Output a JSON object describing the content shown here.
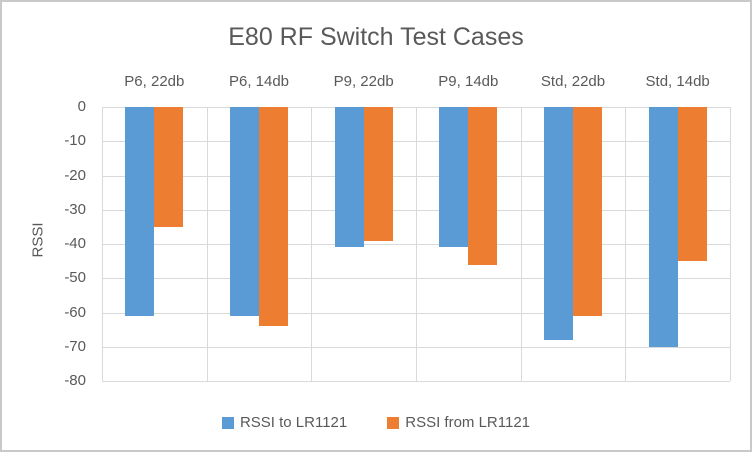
{
  "chart_data": {
    "type": "bar",
    "title": "E80 RF Switch Test Cases",
    "xlabel": "",
    "ylabel": "RSSI",
    "categories": [
      "P6, 22db",
      "P6, 14db",
      "P9, 22db",
      "P9, 14db",
      "Std, 22db",
      "Std, 14db"
    ],
    "series": [
      {
        "name": "RSSI to LR1121",
        "color": "#5B9BD5",
        "values": [
          -61,
          -61,
          -41,
          -41,
          -68,
          -70
        ]
      },
      {
        "name": "RSSI from LR1121",
        "color": "#ED7D31",
        "values": [
          -35,
          -64,
          -39,
          -46,
          -61,
          -45
        ]
      }
    ],
    "ylim": [
      -80,
      0
    ],
    "ytick_step": 10,
    "grid": "horizontal and vertical category boundaries",
    "legend_position": "bottom",
    "bar_orientation": "vertical, hanging from zero line (negative values)"
  },
  "colors": {
    "text": "#595959",
    "grid": "#D9D9D9",
    "border": "#C9C9C9",
    "background": "#FFFFFF"
  }
}
